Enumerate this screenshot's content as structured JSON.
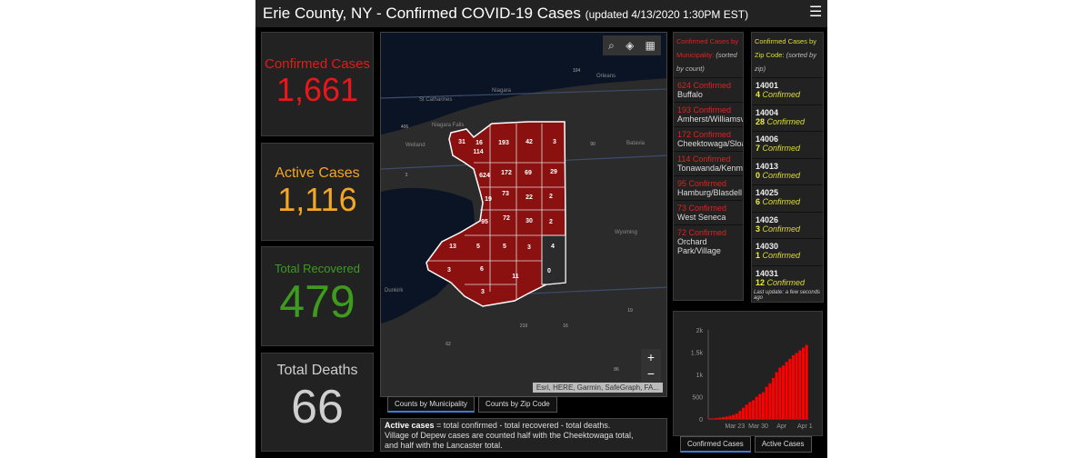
{
  "title": {
    "main": "Erie County, NY - Confirmed COVID-19 Cases",
    "sub": "(updated 4/13/2020 1:30PM EST)",
    "menu_icon": "hamburger-icon"
  },
  "cards": [
    {
      "label": "Confirmed Cases",
      "value": "1,661",
      "color": "#e8181a"
    },
    {
      "label": "Active Cases",
      "value": "1,116",
      "color": "#f5a623"
    },
    {
      "label": "Total Recovered",
      "value": "479",
      "color": "#3e9b1e"
    },
    {
      "label": "Total Deaths",
      "value": "66",
      "color": "#cfcfcf"
    }
  ],
  "map": {
    "place_labels": [
      "St Catharines",
      "Niagara Falls",
      "Welland",
      "Niagara",
      "Orleans",
      "Batavia",
      "Wyoming",
      "Dunkirk"
    ],
    "highway_labels": [
      "104",
      "90",
      "406",
      "3",
      "219",
      "16",
      "19",
      "62",
      "86"
    ],
    "region_counts": [
      "31",
      "16",
      "114",
      "193",
      "42",
      "3",
      "624",
      "172",
      "69",
      "29",
      "73",
      "22",
      "2",
      "19",
      "72",
      "30",
      "2",
      "95",
      "13",
      "5",
      "5",
      "3",
      "4",
      "3",
      "6",
      "11",
      "0",
      "3"
    ],
    "attribution": "Esri, HERE, Garmin, SafeGraph, FA...",
    "zoom_in": "+",
    "zoom_out": "−",
    "tabs": [
      "Counts by Municipality",
      "Counts by Zip Code"
    ]
  },
  "note": {
    "bold": "Active cases",
    "text": " = total confirmed - total recovered - total deaths.",
    "line2": "Village of Depew cases are counted half with the Cheektowaga total,",
    "line3": "and half with the Lancaster total."
  },
  "municipality": {
    "title": "Confirmed Cases by Municipality:",
    "sort": "(sorted by count)",
    "items": [
      {
        "count": "624 Confirmed",
        "name": "Buffalo"
      },
      {
        "count": "193 Confirmed",
        "name": "Amherst/Williamsville"
      },
      {
        "count": "172 Confirmed",
        "name": "Cheektowaga/Sloan"
      },
      {
        "count": "114 Confirmed",
        "name": "Tonawanda/Kenmore"
      },
      {
        "count": "95 Confirmed",
        "name": "Hamburg/Blasdell"
      },
      {
        "count": "73 Confirmed",
        "name": "West Seneca"
      },
      {
        "count": "72 Confirmed",
        "name": "Orchard Park/Village"
      }
    ]
  },
  "zip": {
    "title": "Confirmed Cases by Zip Code:",
    "sort": "(sorted by zip)",
    "confirmed_word": "Confirmed",
    "items": [
      {
        "zip": "14001",
        "n": "4"
      },
      {
        "zip": "14004",
        "n": "28"
      },
      {
        "zip": "14006",
        "n": "7"
      },
      {
        "zip": "14013",
        "n": "0"
      },
      {
        "zip": "14025",
        "n": "6"
      },
      {
        "zip": "14026",
        "n": "3"
      },
      {
        "zip": "14030",
        "n": "1"
      },
      {
        "zip": "14031",
        "n": "12"
      }
    ],
    "last_update": "Last update: a few seconds ago"
  },
  "chart_data": {
    "type": "bar",
    "color": "#ff0000",
    "ylim": [
      0,
      2000
    ],
    "yticks": [
      "0",
      "500",
      "1k",
      "1.5k",
      "2k"
    ],
    "xticks": [
      "Mar 23",
      "Mar 30",
      "Apr",
      "Apr 1"
    ],
    "values": [
      7,
      11,
      20,
      30,
      40,
      55,
      70,
      90,
      120,
      180,
      250,
      320,
      380,
      420,
      500,
      560,
      600,
      720,
      800,
      920,
      1050,
      1150,
      1200,
      1280,
      1350,
      1430,
      1480,
      1540,
      1600,
      1661
    ]
  },
  "chart_tabs": [
    "Confirmed Cases",
    "Active Cases"
  ]
}
